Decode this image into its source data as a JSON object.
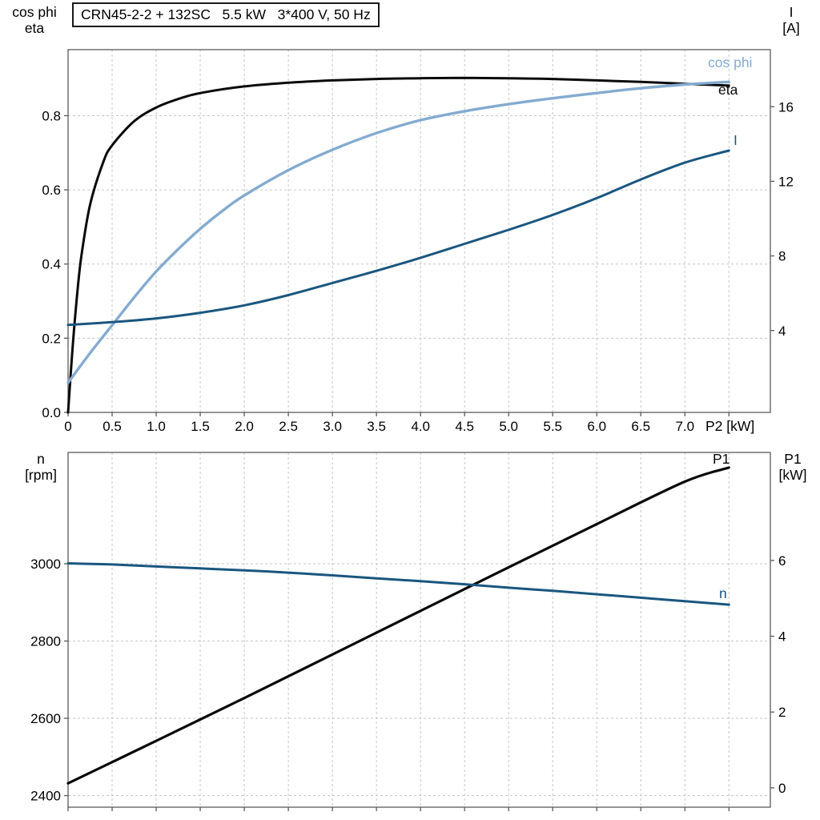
{
  "title_box": "CRN45-2-2 + 132SC   5.5 kW   3*400 V, 50 Hz",
  "x_axis_title": "P2 [kW]",
  "axis_corner_labels": {
    "top_left": [
      "cos phi",
      "eta"
    ],
    "top_right": [
      "I",
      "[A]"
    ],
    "bottom_left": [
      "n",
      "[rpm]"
    ],
    "bottom_right": [
      "P1",
      "[kW]"
    ]
  },
  "curve_labels": {
    "cos_phi": "cos phi",
    "eta": "eta",
    "current": "I",
    "p1": "P1",
    "speed": "n"
  },
  "colors": {
    "eta": "#0a0a0a",
    "p1": "#0a0a0a",
    "cos_phi": "#84abd0",
    "current": "#1a567f",
    "speed": "#1a567f",
    "grid": "#c6c6c6",
    "frame": "#5a5a5a",
    "text": "#000000"
  },
  "chart_data": [
    {
      "id": "motor-electrical-chart",
      "type": "line",
      "title": "CRN45-2-2 + 132SC 5.5 kW 3*400 V, 50 Hz",
      "x_axis": {
        "label": "P2 [kW]",
        "min": 0,
        "max": 7.97,
        "ticks": [
          0,
          0.5,
          1,
          1.5,
          2,
          2.5,
          3,
          3.5,
          4,
          4.5,
          5,
          5.5,
          6,
          6.5,
          7
        ],
        "tick_labels": [
          "0",
          "0.5",
          "1.0",
          "1.5",
          "2.0",
          "2.5",
          "3.0",
          "3.5",
          "4.0",
          "4.5",
          "5.0",
          "5.5",
          "6.0",
          "6.5",
          "7.0"
        ],
        "grid_lines": [
          0.5,
          1,
          1.5,
          2,
          2.5,
          3,
          3.5,
          4,
          4.5,
          5,
          5.5,
          6,
          6.5,
          7,
          7.5
        ]
      },
      "y_left": {
        "label": "cos phi / eta",
        "min": 0,
        "max": 0.978,
        "ticks": [
          0,
          0.2,
          0.4,
          0.6,
          0.8
        ],
        "tick_labels": [
          "0.0",
          "0.2",
          "0.4",
          "0.6",
          "0.8"
        ],
        "grid_lines": [
          0.2,
          0.4,
          0.6,
          0.8
        ]
      },
      "y_right": {
        "label": "I [A]",
        "min": -0.39,
        "max": 19.06,
        "ticks": [
          4,
          8,
          12,
          16
        ],
        "tick_labels": [
          "4",
          "8",
          "12",
          "16"
        ],
        "grid_lines": []
      },
      "series": [
        {
          "name": "eta",
          "axis": "left",
          "color": "eta",
          "width": 3,
          "x": [
            0,
            0.05,
            0.1,
            0.15,
            0.25,
            0.4,
            0.5,
            0.75,
            1,
            1.25,
            1.5,
            2,
            2.5,
            3,
            3.5,
            4,
            4.5,
            5,
            5.5,
            6,
            6.5,
            7,
            7.5
          ],
          "y": [
            0,
            0.17,
            0.31,
            0.42,
            0.56,
            0.675,
            0.72,
            0.785,
            0.822,
            0.845,
            0.861,
            0.879,
            0.889,
            0.895,
            0.899,
            0.901,
            0.902,
            0.901,
            0.899,
            0.895,
            0.891,
            0.886,
            0.881
          ]
        },
        {
          "name": "cos-phi",
          "axis": "left",
          "color": "cos_phi",
          "width": 3.4,
          "x": [
            0,
            0.25,
            0.5,
            0.75,
            1,
            1.25,
            1.5,
            1.75,
            2,
            2.5,
            3,
            3.5,
            4,
            4.5,
            5,
            5.5,
            6,
            6.5,
            7,
            7.5
          ],
          "y": [
            0.08,
            0.16,
            0.235,
            0.31,
            0.38,
            0.44,
            0.495,
            0.543,
            0.585,
            0.653,
            0.708,
            0.753,
            0.788,
            0.812,
            0.831,
            0.847,
            0.861,
            0.874,
            0.884,
            0.891
          ]
        },
        {
          "name": "current",
          "axis": "right",
          "color": "current",
          "width": 3,
          "x": [
            0,
            0.5,
            1,
            1.5,
            2,
            2.5,
            3,
            3.5,
            4,
            4.5,
            5,
            5.5,
            6,
            6.5,
            7,
            7.5
          ],
          "y": [
            4.3,
            4.45,
            4.65,
            4.95,
            5.35,
            5.9,
            6.55,
            7.2,
            7.9,
            8.65,
            9.4,
            10.2,
            11.1,
            12.1,
            13.0,
            13.65
          ]
        }
      ]
    },
    {
      "id": "speed-power-chart",
      "type": "line",
      "x_axis": {
        "label": "P2 [kW]",
        "min": 0,
        "max": 7.97,
        "ticks": [],
        "tick_labels": [],
        "grid_lines": [
          0.5,
          1,
          1.5,
          2,
          2.5,
          3,
          3.5,
          4,
          4.5,
          5,
          5.5,
          6,
          6.5,
          7,
          7.5
        ]
      },
      "y_left": {
        "label": "n [rpm]",
        "min": 2370,
        "max": 3288,
        "ticks": [
          2400,
          2600,
          2800,
          3000
        ],
        "tick_labels": [
          "2400",
          "2600",
          "2800",
          "3000"
        ],
        "grid_lines": [
          2400,
          2600,
          2800,
          3000
        ]
      },
      "y_right": {
        "label": "P1 [kW]",
        "min": -0.51,
        "max": 8.85,
        "ticks": [
          0,
          2,
          4,
          6
        ],
        "tick_labels": [
          "0",
          "2",
          "4",
          "6"
        ],
        "grid_lines": []
      },
      "series": [
        {
          "name": "p1",
          "axis": "right",
          "color": "p1",
          "width": 3.2,
          "x": [
            0,
            1,
            2,
            3,
            4,
            5,
            6,
            7,
            7.5
          ],
          "y": [
            0.12,
            1.24,
            2.37,
            3.52,
            4.67,
            5.82,
            6.96,
            8.08,
            8.45
          ]
        },
        {
          "name": "speed",
          "axis": "left",
          "color": "speed",
          "width": 3,
          "x": [
            0,
            0.5,
            1,
            1.5,
            2,
            2.5,
            3,
            3.5,
            4,
            4.5,
            5,
            5.5,
            6,
            6.5,
            7,
            7.5
          ],
          "y": [
            3001,
            2998,
            2993,
            2988,
            2983,
            2977,
            2970,
            2962,
            2955,
            2947,
            2938,
            2930,
            2921,
            2912,
            2903,
            2894
          ]
        }
      ]
    }
  ]
}
